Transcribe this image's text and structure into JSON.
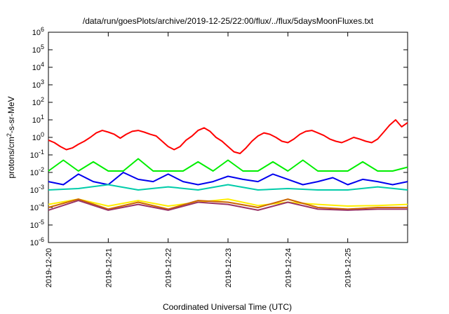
{
  "chart_data": {
    "type": "line",
    "title": "/data/run/goesPlots/archive/2019-12-25/22:00/flux/../flux/5daysMoonFluxes.txt",
    "xlabel": "Coordinated Universal Time (UTC)",
    "ylabel": "protons/cm²-s-sr-MeV",
    "yscale": "log",
    "ylim": [
      1e-06,
      1000000.0
    ],
    "xlim": [
      "2019-12-20",
      "2019-12-26"
    ],
    "x_ticks": [
      "2019-12-20",
      "2019-12-21",
      "2019-12-22",
      "2019-12-23",
      "2019-12-24",
      "2019-12-25"
    ],
    "y_ticks": [
      {
        "base": "10",
        "exp": "-6"
      },
      {
        "base": "10",
        "exp": "-5"
      },
      {
        "base": "10",
        "exp": "-4"
      },
      {
        "base": "10",
        "exp": "-3"
      },
      {
        "base": "10",
        "exp": "-2"
      },
      {
        "base": "10",
        "exp": "-1"
      },
      {
        "base": "10",
        "exp": "0"
      },
      {
        "base": "10",
        "exp": "1"
      },
      {
        "base": "10",
        "exp": "2"
      },
      {
        "base": "10",
        "exp": "3"
      },
      {
        "base": "10",
        "exp": "4"
      },
      {
        "base": "10",
        "exp": "5"
      },
      {
        "base": "10",
        "exp": "6"
      }
    ],
    "grid": false,
    "series": [
      {
        "color": "#ff0000",
        "x": [
          0,
          0.1,
          0.2,
          0.3,
          0.4,
          0.5,
          0.6,
          0.7,
          0.8,
          0.9,
          1,
          1.1,
          1.2,
          1.3,
          1.4,
          1.5,
          1.6,
          1.7,
          1.8,
          1.9,
          2,
          2.1,
          2.2,
          2.3,
          2.4,
          2.5,
          2.6,
          2.7,
          2.8,
          2.9,
          3,
          3.1,
          3.2,
          3.3,
          3.4,
          3.5,
          3.6,
          3.7,
          3.8,
          3.9,
          4,
          4.1,
          4.2,
          4.3,
          4.4,
          4.5,
          4.6,
          4.7,
          4.8,
          4.9,
          5,
          5.1,
          5.2,
          5.3,
          5.4,
          5.5,
          5.6,
          5.7,
          5.8,
          5.9,
          6
        ],
        "values": [
          0.7,
          0.5,
          0.3,
          0.2,
          0.25,
          0.4,
          0.6,
          1.0,
          1.8,
          2.5,
          2.0,
          1.5,
          0.9,
          1.5,
          2.2,
          2.5,
          2.0,
          1.5,
          1.2,
          0.6,
          0.3,
          0.2,
          0.3,
          0.7,
          1.2,
          2.5,
          3.5,
          2.2,
          1.0,
          0.6,
          0.3,
          0.15,
          0.12,
          0.25,
          0.6,
          1.2,
          1.8,
          1.5,
          1.0,
          0.6,
          0.5,
          0.8,
          1.5,
          2.2,
          2.5,
          1.8,
          1.3,
          0.8,
          0.6,
          0.5,
          0.7,
          1.0,
          0.8,
          0.6,
          0.5,
          0.8,
          2.0,
          5.0,
          10,
          4.0,
          7.0
        ]
      },
      {
        "color": "#00ee00",
        "x": [
          0,
          0.25,
          0.5,
          0.75,
          1,
          1.25,
          1.5,
          1.75,
          2,
          2.25,
          2.5,
          2.75,
          3,
          3.25,
          3.5,
          3.75,
          4,
          4.25,
          4.5,
          4.75,
          5,
          5.25,
          5.5,
          5.75,
          6
        ],
        "values": [
          0.012,
          0.05,
          0.012,
          0.04,
          0.012,
          0.012,
          0.06,
          0.012,
          0.012,
          0.012,
          0.04,
          0.012,
          0.05,
          0.012,
          0.012,
          0.04,
          0.012,
          0.05,
          0.012,
          0.012,
          0.012,
          0.04,
          0.012,
          0.012,
          0.02
        ]
      },
      {
        "color": "#0000ee",
        "x": [
          0,
          0.25,
          0.5,
          0.75,
          1,
          1.25,
          1.5,
          1.75,
          2,
          2.25,
          2.5,
          2.75,
          3,
          3.25,
          3.5,
          3.75,
          4,
          4.25,
          4.5,
          4.75,
          5,
          5.25,
          5.5,
          5.75,
          6
        ],
        "values": [
          0.003,
          0.002,
          0.008,
          0.003,
          0.002,
          0.01,
          0.004,
          0.003,
          0.008,
          0.003,
          0.002,
          0.003,
          0.006,
          0.004,
          0.003,
          0.008,
          0.004,
          0.002,
          0.003,
          0.005,
          0.002,
          0.004,
          0.003,
          0.002,
          0.003
        ]
      },
      {
        "color": "#00ccaa",
        "x": [
          0,
          0.5,
          1,
          1.5,
          2,
          2.5,
          3,
          3.5,
          4,
          4.5,
          5,
          5.5,
          6
        ],
        "values": [
          0.001,
          0.0012,
          0.002,
          0.001,
          0.0015,
          0.001,
          0.002,
          0.001,
          0.0012,
          0.001,
          0.001,
          0.0015,
          0.001
        ]
      },
      {
        "color": "#ffee00",
        "x": [
          0,
          0.5,
          1,
          1.5,
          2,
          2.5,
          3,
          3.5,
          4,
          4.5,
          5,
          5.5,
          6
        ],
        "values": [
          0.00015,
          0.0003,
          0.00012,
          0.00025,
          0.00012,
          0.0002,
          0.0003,
          0.00013,
          0.0002,
          0.00015,
          0.00012,
          0.00013,
          0.00015
        ]
      },
      {
        "color": "#cc6600",
        "x": [
          0,
          0.5,
          1,
          1.5,
          2,
          2.5,
          3,
          3.5,
          4,
          4.5,
          5,
          5.5,
          6
        ],
        "values": [
          0.0001,
          0.0003,
          8e-05,
          0.0002,
          8e-05,
          0.00025,
          0.0002,
          0.0001,
          0.0003,
          0.0001,
          8e-05,
          0.0001,
          0.0001
        ]
      },
      {
        "color": "#993366",
        "x": [
          0,
          0.5,
          1,
          1.5,
          2,
          2.5,
          3,
          3.5,
          4,
          4.5,
          5,
          5.5,
          6
        ],
        "values": [
          7e-05,
          0.00025,
          7e-05,
          0.00015,
          7e-05,
          0.0002,
          0.00015,
          7e-05,
          0.0002,
          8e-05,
          7e-05,
          8e-05,
          8e-05
        ]
      }
    ]
  }
}
